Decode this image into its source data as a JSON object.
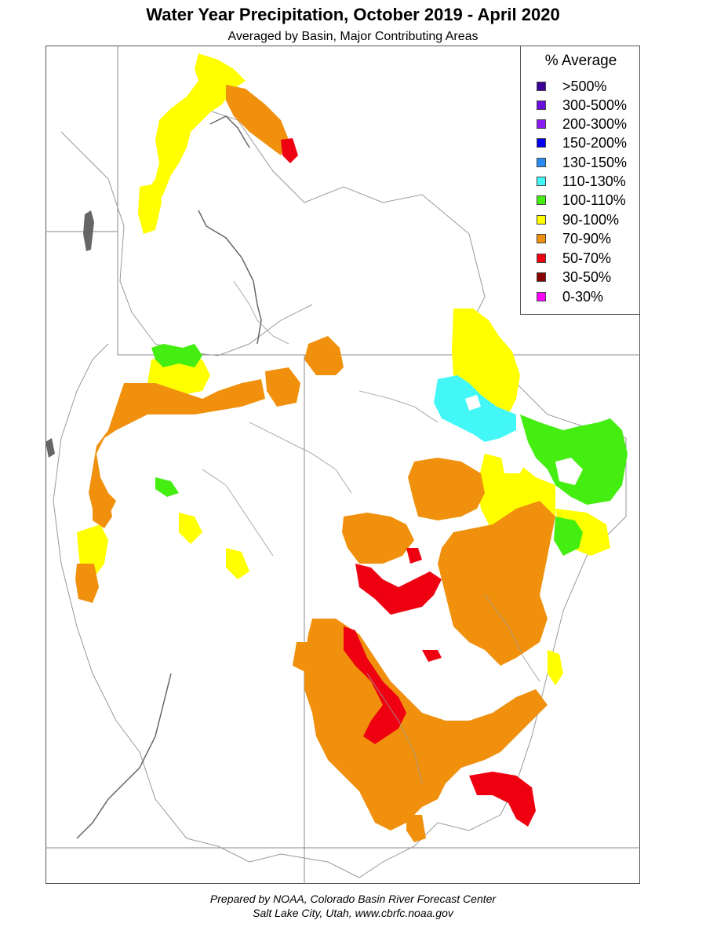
{
  "title": "Water Year Precipitation, October 2019 - April 2020",
  "subtitle": "Averaged by Basin, Major Contributing Areas",
  "legend": {
    "title": "% Average",
    "items": [
      {
        "label": ">500%",
        "color": "#3d0099"
      },
      {
        "label": "300-500%",
        "color": "#6a0fe0"
      },
      {
        "label": "200-300%",
        "color": "#8a1cf0"
      },
      {
        "label": "150-200%",
        "color": "#0000ee"
      },
      {
        "label": "130-150%",
        "color": "#2a8cf0"
      },
      {
        "label": "110-130%",
        "color": "#44f7f7"
      },
      {
        "label": "100-110%",
        "color": "#44ee11"
      },
      {
        "label": "90-100%",
        "color": "#ffff00"
      },
      {
        "label": "70-90%",
        "color": "#f0900c"
      },
      {
        "label": "50-70%",
        "color": "#ee0011"
      },
      {
        "label": "30-50%",
        "color": "#880000"
      },
      {
        "label": "0-30%",
        "color": "#ff00ff"
      }
    ]
  },
  "credit": {
    "line1": "Prepared by NOAA, Colorado Basin River Forecast Center",
    "line2": "Salt Lake City, Utah, www.cbrfc.noaa.gov"
  }
}
